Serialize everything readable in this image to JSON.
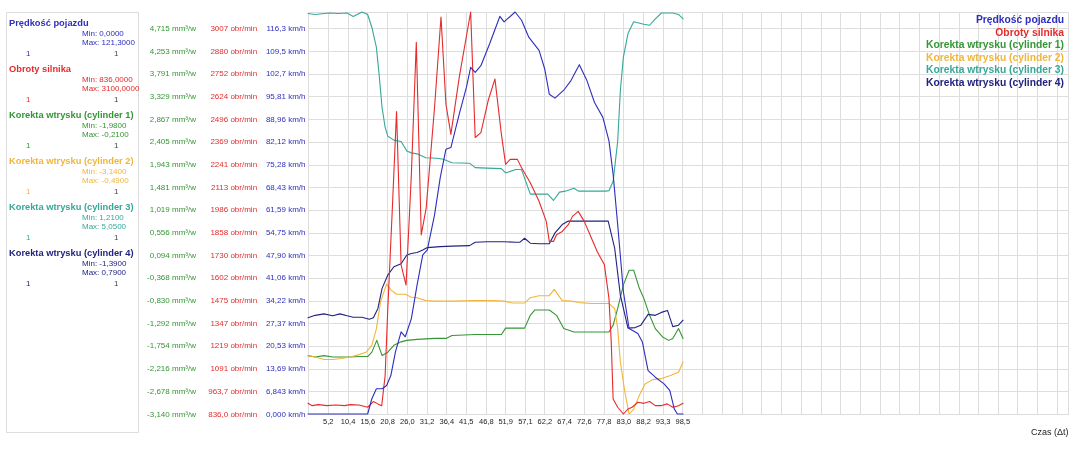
{
  "chart_data": [
    {
      "type": "other",
      "annotations": [
        "Prędkość pojazdu",
        "Min: 0,0000",
        "Max: 121,3000",
        "1",
        "1",
        "Obroty silnika",
        "Min: 836,0000",
        "Max: 3100,0000",
        "1",
        "1",
        "Korekta wtrysku (cylinder 1)",
        "Min: -1,9800",
        "Max: -0,2100",
        "1",
        "1",
        "Korekta wtrysku (cylinder 2)",
        "Min: -3,1400",
        "Max: -0,4900",
        "1",
        "1",
        "Korekta wtrysku (cylinder 3)",
        "Min: 1,2100",
        "Max: 5,0500",
        "1",
        "1",
        "Korekta wtrysku (cylinder 4)",
        "Min: -1,3900",
        "Max: 0,7900",
        "1",
        "1"
      ]
    },
    {
      "type": "line",
      "xlabel": "Czas (Δt)",
      "grid": true,
      "legend": "top right",
      "xlim": [
        0,
        200
      ],
      "xticks": [
        {
          "value": 5.2,
          "label": "5,2"
        },
        {
          "value": 10.4,
          "label": "10,4"
        },
        {
          "value": 15.6,
          "label": "15,6"
        },
        {
          "value": 20.8,
          "label": "20,8"
        },
        {
          "value": 26,
          "label": "26,0"
        },
        {
          "value": 31.2,
          "label": "31,2"
        },
        {
          "value": 36.4,
          "label": "36,4"
        },
        {
          "value": 41.5,
          "label": "41,5"
        },
        {
          "value": 46.8,
          "label": "46,8"
        },
        {
          "value": 51.9,
          "label": "51,9"
        },
        {
          "value": 57.1,
          "label": "57,1"
        },
        {
          "value": 62.2,
          "label": "62,2"
        },
        {
          "value": 67.4,
          "label": "67,4"
        },
        {
          "value": 72.6,
          "label": "72,6"
        },
        {
          "value": 77.8,
          "label": "77,8"
        },
        {
          "value": 83,
          "label": "83,0"
        },
        {
          "value": 88.2,
          "label": "88,2"
        },
        {
          "value": 93.3,
          "label": "93,3"
        },
        {
          "value": 98.5,
          "label": "98,5"
        },
        {
          "value": 103.7,
          "label": null
        },
        {
          "value": 108.9,
          "label": null
        },
        {
          "value": 114.1,
          "label": null
        },
        {
          "value": 119.3,
          "label": null
        },
        {
          "value": 124.5,
          "label": null
        },
        {
          "value": 129.7,
          "label": null
        },
        {
          "value": 134.9,
          "label": null
        },
        {
          "value": 140.1,
          "label": null
        },
        {
          "value": 145.2,
          "label": null
        },
        {
          "value": 150.4,
          "label": null
        },
        {
          "value": 155.6,
          "label": null
        },
        {
          "value": 160.8,
          "label": null
        },
        {
          "value": 166.0,
          "label": null
        },
        {
          "value": 171.2,
          "label": null
        },
        {
          "value": 176.4,
          "label": null
        },
        {
          "value": 181.5,
          "label": null
        },
        {
          "value": 186.7,
          "label": null
        },
        {
          "value": 191.9,
          "label": null
        },
        {
          "value": 197.1,
          "label": null
        }
      ],
      "ylim": [
        -3.14,
        5.05
      ],
      "yticks": [
        {
          "value": -3.14,
          "label": "-3,140 mm³/w"
        },
        {
          "value": -2.678,
          "label": "-2,678 mm³/w"
        },
        {
          "value": -2.216,
          "label": "-2,216 mm³/w"
        },
        {
          "value": -1.754,
          "label": "-1,754 mm³/w"
        },
        {
          "value": -1.292,
          "label": "-1,292 mm³/w"
        },
        {
          "value": -0.83,
          "label": "-0,830 mm³/w"
        },
        {
          "value": -0.368,
          "label": "-0,368 mm³/w"
        },
        {
          "value": 0.094,
          "label": "0,094 mm³/w"
        },
        {
          "value": 0.556,
          "label": "0,556 mm³/w"
        },
        {
          "value": 1.019,
          "label": "1,019 mm³/w"
        },
        {
          "value": 1.481,
          "label": "1,481 mm³/w"
        },
        {
          "value": 1.943,
          "label": "1,943 mm³/w"
        },
        {
          "value": 2.405,
          "label": "2,405 mm³/w"
        },
        {
          "value": 2.867,
          "label": "2,867 mm³/w"
        },
        {
          "value": 3.329,
          "label": "3,329 mm³/w"
        },
        {
          "value": 3.791,
          "label": "3,791 mm³/w"
        },
        {
          "value": 4.253,
          "label": "4,253 mm³/w"
        },
        {
          "value": 4.715,
          "label": "4,715 mm³/w"
        }
      ],
      "y2lim": [
        836,
        3100
      ],
      "y2ticks": [
        {
          "value": 836,
          "label": "836,0 obr/min"
        },
        {
          "value": 963.7,
          "label": "963,7 obr/min"
        },
        {
          "value": 1091,
          "label": "1091 obr/min"
        },
        {
          "value": 1219,
          "label": "1219 obr/min"
        },
        {
          "value": 1347,
          "label": "1347 obr/min"
        },
        {
          "value": 1475,
          "label": "1475 obr/min"
        },
        {
          "value": 1602,
          "label": "1602 obr/min"
        },
        {
          "value": 1730,
          "label": "1730 obr/min"
        },
        {
          "value": 1858,
          "label": "1858 obr/min"
        },
        {
          "value": 1986,
          "label": "1986 obr/min"
        },
        {
          "value": 2113,
          "label": "2113 obr/min"
        },
        {
          "value": 2241,
          "label": "2241 obr/min"
        },
        {
          "value": 2369,
          "label": "2369 obr/min"
        },
        {
          "value": 2496,
          "label": "2496 obr/min"
        },
        {
          "value": 2624,
          "label": "2624 obr/min"
        },
        {
          "value": 2752,
          "label": "2752 obr/min"
        },
        {
          "value": 2880,
          "label": "2880 obr/min"
        },
        {
          "value": 3007,
          "label": "3007 obr/min"
        }
      ],
      "y3lim": [
        0,
        121.3
      ],
      "y3ticks": [
        {
          "value": 0,
          "label": "0,000 km/h"
        },
        {
          "value": 6.843,
          "label": "6,843 km/h"
        },
        {
          "value": 13.69,
          "label": "13,69 km/h"
        },
        {
          "value": 20.53,
          "label": "20,53 km/h"
        },
        {
          "value": 27.37,
          "label": "27,37 km/h"
        },
        {
          "value": 34.22,
          "label": "34,22 km/h"
        },
        {
          "value": 41.06,
          "label": "41,06 km/h"
        },
        {
          "value": 47.9,
          "label": "47,90 km/h"
        },
        {
          "value": 54.75,
          "label": "54,75 km/h"
        },
        {
          "value": 61.59,
          "label": "61,59 km/h"
        },
        {
          "value": 68.43,
          "label": "68,43 km/h"
        },
        {
          "value": 75.28,
          "label": "75,28 km/h"
        },
        {
          "value": 82.12,
          "label": "82,12 km/h"
        },
        {
          "value": 88.96,
          "label": "88,96 km/h"
        },
        {
          "value": 95.81,
          "label": "95,81 km/h"
        },
        {
          "value": 102.7,
          "label": "102,7 km/h"
        },
        {
          "value": 109.5,
          "label": "109,5 km/h"
        },
        {
          "value": 116.3,
          "label": "116,3 km/h"
        }
      ],
      "series": [
        {
          "name": "Prędkość pojazdu",
          "color": "#2e2ebd",
          "axis": "y3",
          "x": [
            0,
            15.7,
            16.8,
            18.0,
            19.5,
            20.7,
            21.8,
            23.0,
            24.5,
            25.6,
            27.2,
            28.7,
            30.2,
            31.4,
            33.3,
            34.8,
            36.3,
            37.6,
            39.8,
            41.7,
            42.8,
            44.0,
            45.5,
            47.8,
            50.5,
            51.6,
            54.5,
            56.2,
            58.1,
            60.8,
            62.3,
            63.5,
            65.0,
            67.3,
            69.2,
            71.4,
            73.4,
            75.4,
            77.6,
            79.2,
            80.3,
            81.5,
            83.0,
            84.5,
            86.8,
            88.0,
            89.5,
            91.4,
            93.7,
            95.2,
            96.4,
            97.2,
            98.7
          ],
          "values": [
            0,
            0,
            4.6,
            7.6,
            7.6,
            8.6,
            11.6,
            18.7,
            24.8,
            23.3,
            28.8,
            38.9,
            48.0,
            49.5,
            60.1,
            71.3,
            79.9,
            80.4,
            90.5,
            98.6,
            104.6,
            103.1,
            105.1,
            111.7,
            120.0,
            118.3,
            121.3,
            118.8,
            113.7,
            109.7,
            104.1,
            96.5,
            95.3,
            97.7,
            100.6,
            105.4,
            100.6,
            94.0,
            89.5,
            82.4,
            72.3,
            57.1,
            36.9,
            25.8,
            24.3,
            21.7,
            13.1,
            11.1,
            9.1,
            7.1,
            1.5,
            0,
            0
          ]
        },
        {
          "name": "Obroty silnika",
          "color": "#e52b2b",
          "axis": "y2",
          "x": [
            0,
            1.1,
            2.7,
            5.0,
            7.3,
            9.6,
            11.1,
            13.4,
            15.7,
            17.2,
            18.4,
            19.4,
            20.3,
            21.0,
            22.2,
            23.3,
            24.5,
            25.8,
            27.2,
            28.5,
            29.8,
            31.1,
            33.3,
            35.0,
            36.3,
            37.6,
            39.8,
            42.8,
            44.0,
            45.5,
            47.4,
            49.2,
            50.9,
            52.0,
            53.2,
            55.1,
            56.2,
            58.5,
            60.8,
            62.7,
            63.5,
            64.6,
            65.4,
            66.9,
            68.5,
            69.6,
            71.1,
            72.7,
            74.6,
            76.1,
            78.0,
            79.2,
            79.8,
            80.3,
            81.5,
            83.0,
            84.2,
            85.3,
            86.8,
            88.4,
            89.9,
            91.4,
            92.9,
            94.5,
            96.0,
            97.5,
            98.7
          ],
          "values": [
            896,
            883,
            889,
            883,
            887,
            883,
            889,
            887,
            874,
            906,
            893,
            883,
            1053,
            1430,
            1996,
            2540,
            1676,
            1562,
            2185,
            2930,
            1845,
            1996,
            2562,
            3072,
            2581,
            2411,
            2732,
            3100,
            2393,
            2421,
            2600,
            2723,
            2411,
            2242,
            2270,
            2270,
            2223,
            2138,
            2034,
            1921,
            1808,
            1808,
            1845,
            1864,
            1902,
            1949,
            1977,
            1921,
            1826,
            1751,
            1676,
            1487,
            1242,
            921,
            874,
            836,
            864,
            874,
            902,
            896,
            906,
            883,
            883,
            893,
            874,
            883,
            896
          ]
        },
        {
          "name": "Korekta wtrysku (cylinder 1)",
          "color": "#349634",
          "x": [
            0,
            1.9,
            4.2,
            6.5,
            8.8,
            11.1,
            13.4,
            15.7,
            16.8,
            18.1,
            19.5,
            21.0,
            22.6,
            24.5,
            26.0,
            28.7,
            33.3,
            36.3,
            37.9,
            44.0,
            48.6,
            50.9,
            52.0,
            54.7,
            57.0,
            58.5,
            59.7,
            63.5,
            65.4,
            67.3,
            70.0,
            74.6,
            79.2,
            80.3,
            81.5,
            83.0,
            84.5,
            85.7,
            87.2,
            88.4,
            89.9,
            91.4,
            93.3,
            94.9,
            96.0,
            97.5,
            98.7
          ],
          "values": [
            -1.95,
            -1.98,
            -1.95,
            -1.98,
            -1.98,
            -1.98,
            -1.97,
            -1.97,
            -1.88,
            -1.64,
            -1.95,
            -1.88,
            -1.74,
            -1.67,
            -1.64,
            -1.62,
            -1.6,
            -1.6,
            -1.54,
            -1.52,
            -1.52,
            -1.52,
            -1.39,
            -1.39,
            -1.39,
            -1.13,
            -1.02,
            -1.02,
            -1.13,
            -1.4,
            -1.47,
            -1.47,
            -1.47,
            -1.33,
            -0.99,
            -0.51,
            -0.21,
            -0.21,
            -0.58,
            -0.79,
            -1.13,
            -1.4,
            -1.57,
            -1.64,
            -1.6,
            -1.4,
            -1.6
          ]
        },
        {
          "name": "Korekta wtrysku (cylinder 2)",
          "color": "#f2b53a",
          "x": [
            0,
            1.9,
            4.2,
            6.5,
            8.8,
            11.1,
            13.4,
            15.3,
            16.8,
            18.0,
            19.1,
            20.7,
            21.8,
            23.3,
            25.6,
            27.2,
            28.7,
            31.0,
            33.3,
            37.9,
            44.0,
            48.6,
            51.6,
            53.9,
            57.0,
            58.5,
            60.8,
            63.5,
            64.8,
            66.9,
            69.2,
            71.5,
            74.6,
            79.2,
            80.7,
            81.5,
            82.2,
            83.4,
            84.5,
            85.7,
            87.2,
            88.7,
            90.7,
            92.9,
            95.2,
            97.5,
            98.7
          ],
          "values": [
            -1.95,
            -1.98,
            -2.03,
            -2.03,
            -2.01,
            -1.98,
            -1.93,
            -1.88,
            -1.74,
            -1.4,
            -0.85,
            -0.49,
            -0.61,
            -0.7,
            -0.7,
            -0.76,
            -0.77,
            -0.83,
            -0.84,
            -0.84,
            -0.83,
            -0.83,
            -0.84,
            -0.88,
            -0.88,
            -0.77,
            -0.73,
            -0.73,
            -0.6,
            -0.83,
            -0.84,
            -0.87,
            -0.89,
            -0.89,
            -0.99,
            -1.4,
            -2.08,
            -2.7,
            -3.14,
            -3.04,
            -2.76,
            -2.53,
            -2.44,
            -2.42,
            -2.36,
            -2.29,
            -2.08
          ]
        },
        {
          "name": "Korekta wtrysku (cylinder 3)",
          "color": "#36a898",
          "x": [
            0,
            1.9,
            5.7,
            8.0,
            10.3,
            11.9,
            14.2,
            15.7,
            16.8,
            18.0,
            18.7,
            19.5,
            20.3,
            21.0,
            22.6,
            24.5,
            26.0,
            27.2,
            28.7,
            31.0,
            34.0,
            35.6,
            37.9,
            42.5,
            44.0,
            47.1,
            50.9,
            52.0,
            54.7,
            56.2,
            58.5,
            63.1,
            64.6,
            66.2,
            67.7,
            70.0,
            71.2,
            74.6,
            78.4,
            79.2,
            80.3,
            81.5,
            82.2,
            83.0,
            84.2,
            85.7,
            88.4,
            89.9,
            91.4,
            93.0,
            96.0,
            97.5,
            98.7
          ],
          "values": [
            5.02,
            5.0,
            5.03,
            5.02,
            5.03,
            4.96,
            5.05,
            5.0,
            4.74,
            4.33,
            3.79,
            3.1,
            2.7,
            2.52,
            2.44,
            2.41,
            2.22,
            2.18,
            2.16,
            2.08,
            2.07,
            2.05,
            1.98,
            1.97,
            1.88,
            1.87,
            1.86,
            1.77,
            1.84,
            1.84,
            1.34,
            1.34,
            1.21,
            1.38,
            1.4,
            1.46,
            1.4,
            1.4,
            1.4,
            1.41,
            1.6,
            2.42,
            3.45,
            4.13,
            4.61,
            4.85,
            4.8,
            4.78,
            4.91,
            5.03,
            5.03,
            5.0,
            4.91
          ]
        },
        {
          "name": "Korekta wtrysku (cylinder 4)",
          "color": "#222280",
          "x": [
            0,
            1.9,
            4.2,
            6.5,
            8.4,
            10.3,
            11.9,
            14.2,
            16.1,
            17.2,
            18.4,
            19.5,
            21.0,
            22.6,
            24.5,
            26.0,
            27.2,
            28.7,
            30.2,
            31.4,
            34.8,
            37.9,
            42.5,
            44.0,
            47.1,
            51.6,
            54.7,
            55.8,
            57.0,
            58.5,
            60.8,
            63.5,
            65.0,
            66.9,
            68.5,
            71.5,
            74.6,
            79.0,
            80.7,
            82.2,
            84.2,
            86.1,
            87.6,
            89.5,
            91.4,
            93.0,
            94.6,
            96.0,
            97.5,
            98.7
          ],
          "values": [
            -1.18,
            -1.13,
            -1.1,
            -1.14,
            -1.1,
            -1.14,
            -1.17,
            -1.17,
            -1.21,
            -1.18,
            -0.99,
            -0.58,
            -0.31,
            -0.14,
            -0.08,
            0.1,
            0.13,
            0.15,
            0.2,
            0.25,
            0.27,
            0.28,
            0.29,
            0.36,
            0.37,
            0.37,
            0.36,
            0.36,
            0.44,
            0.34,
            0.33,
            0.33,
            0.55,
            0.72,
            0.79,
            0.79,
            0.79,
            0.79,
            0.24,
            -0.72,
            -1.39,
            -1.38,
            -1.33,
            -1.11,
            -1.13,
            -1.07,
            -1.03,
            -1.36,
            -1.33,
            -1.23
          ]
        }
      ]
    }
  ]
}
